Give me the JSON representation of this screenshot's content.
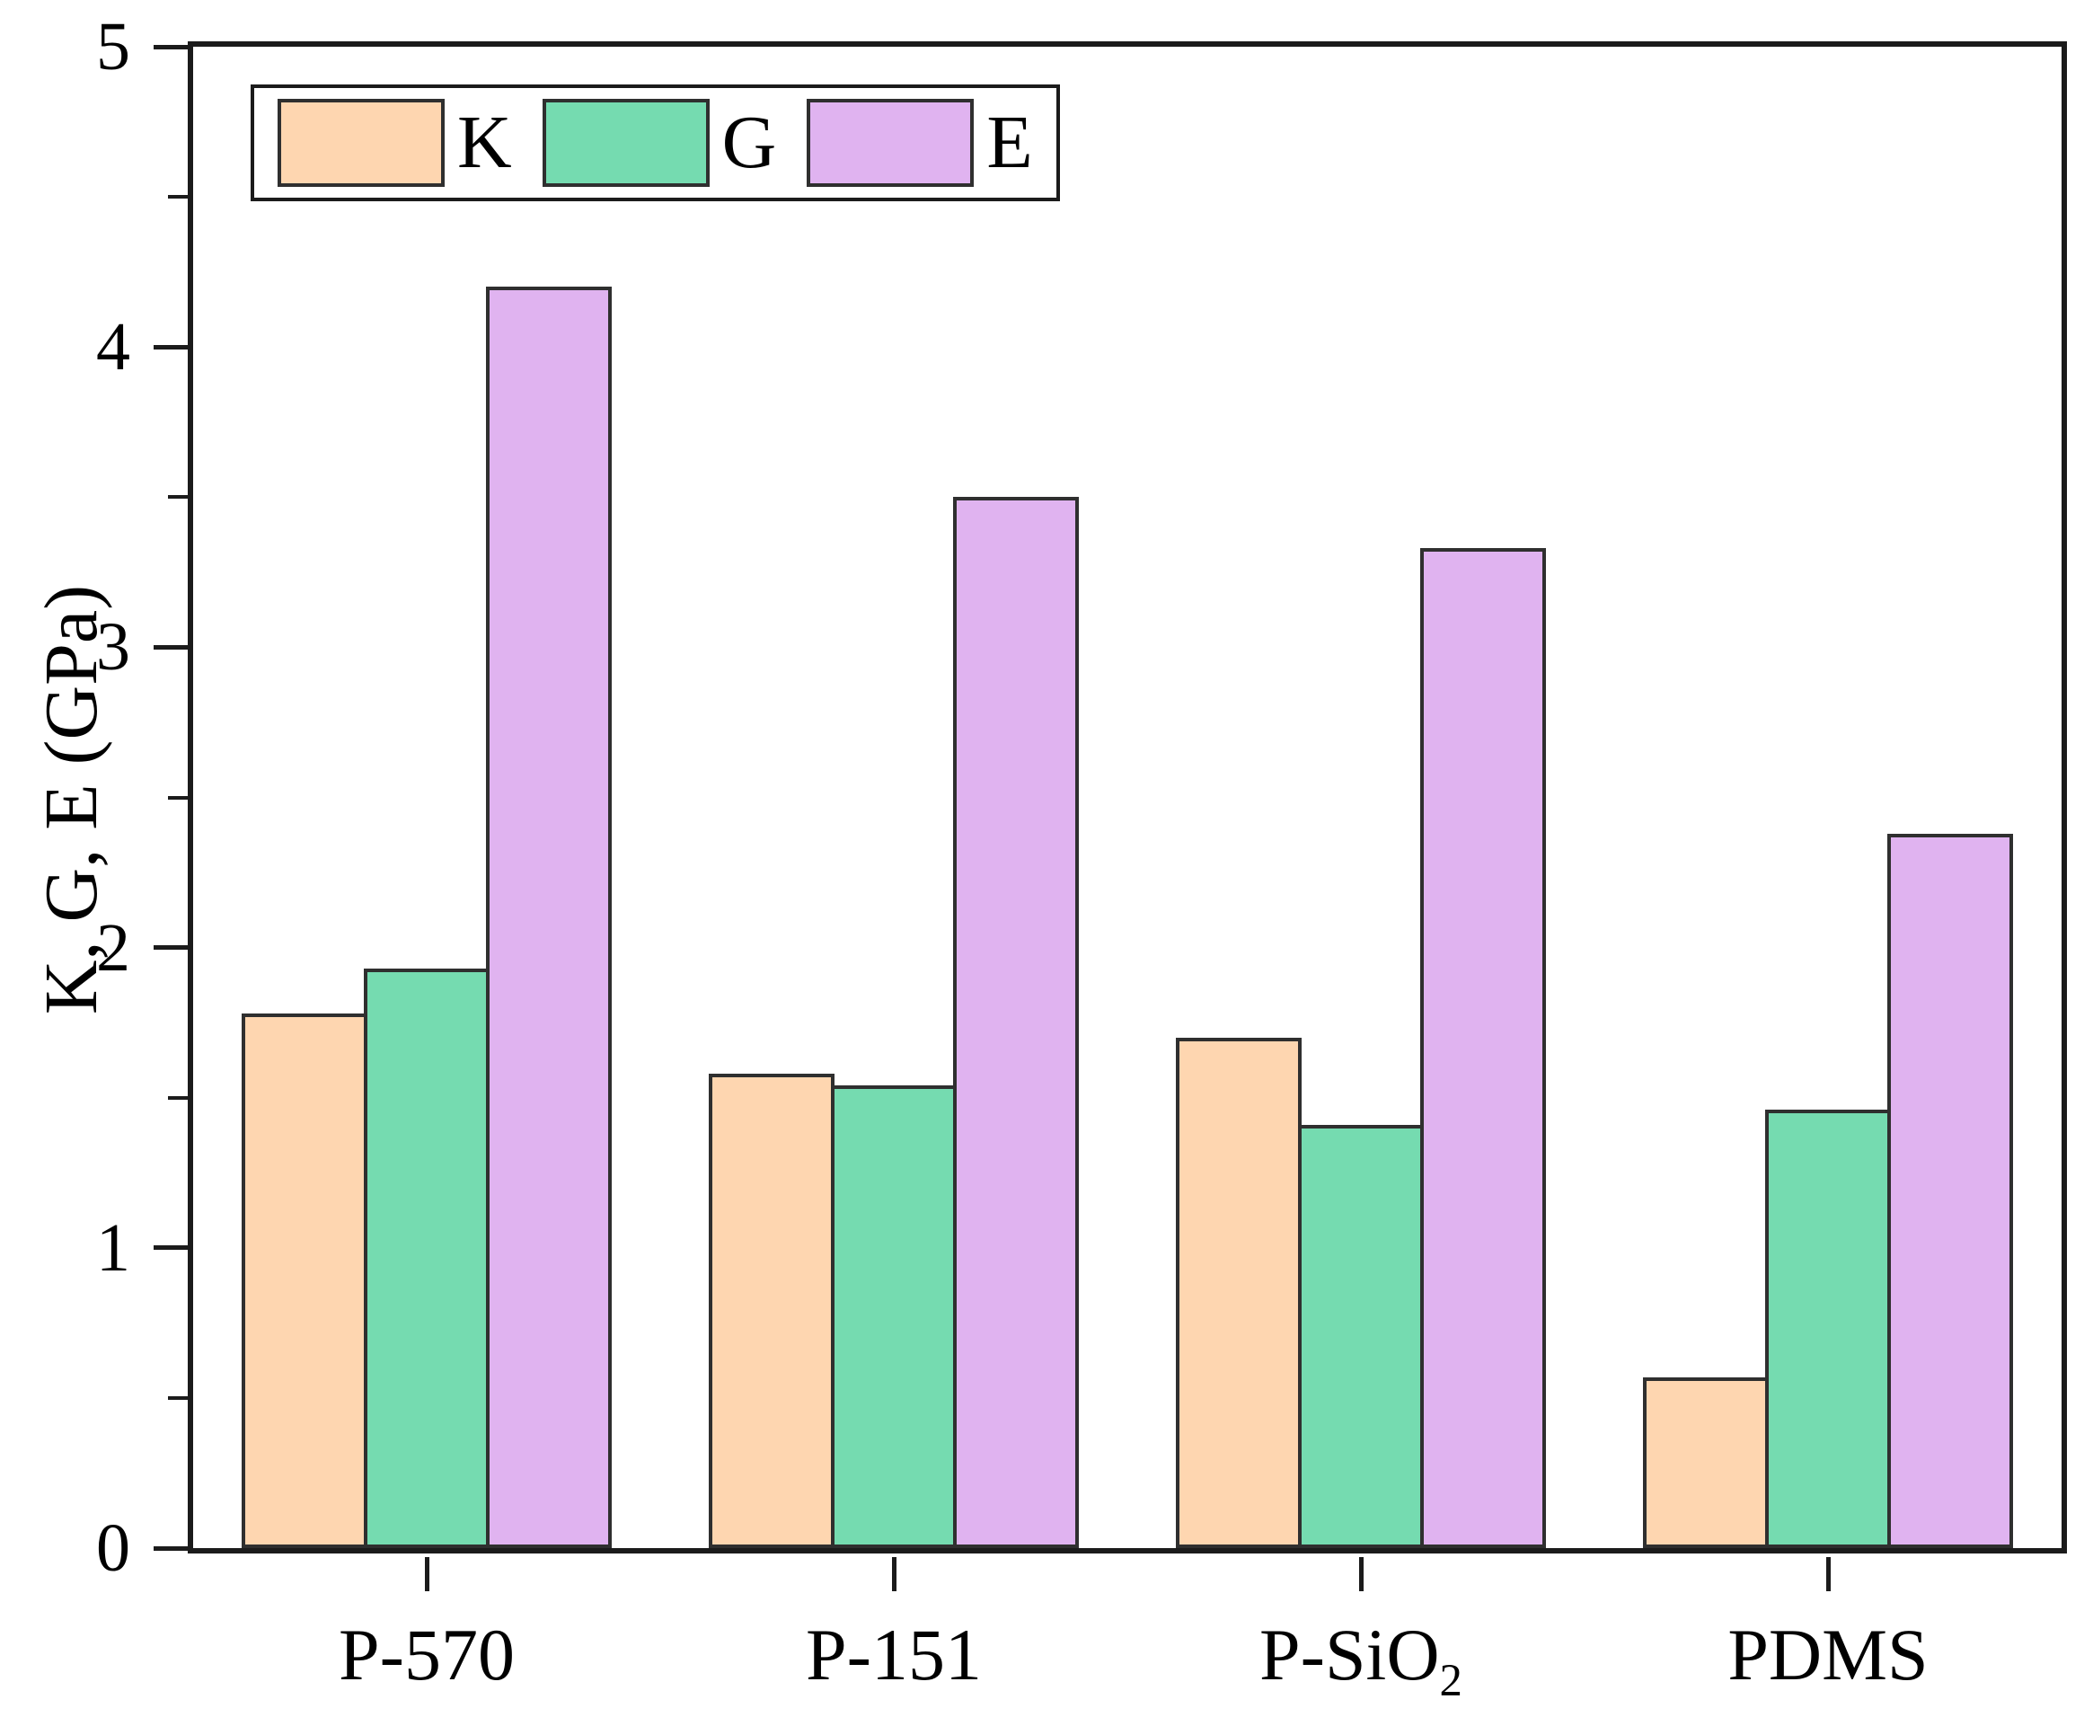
{
  "chart_data": {
    "type": "bar",
    "title": "",
    "xlabel": "",
    "ylabel": "K, G, E (GPa)",
    "ylim": [
      0,
      5
    ],
    "ytick_step": 1,
    "yminor_step": 0.5,
    "ytick_labels": [
      "0",
      "1",
      "2",
      "3",
      "4",
      "5"
    ],
    "grid": false,
    "legend_position": "top-left-inside",
    "frame_color": "#1b1b1b",
    "bar_border_color": "#2f2f2f",
    "categories": [
      {
        "base": "P-570",
        "sub": ""
      },
      {
        "base": "P-151",
        "sub": ""
      },
      {
        "base": "P-SiO",
        "sub": "2"
      },
      {
        "base": "PDMS",
        "sub": ""
      }
    ],
    "series": [
      {
        "name": "K",
        "color": "#FED6B0",
        "values": [
          1.78,
          1.58,
          1.7,
          0.57
        ]
      },
      {
        "name": "G",
        "color": "#75DBB0",
        "values": [
          1.93,
          1.54,
          1.41,
          1.46
        ]
      },
      {
        "name": "E",
        "color": "#E0B3F0",
        "values": [
          4.2,
          3.5,
          3.33,
          2.38
        ]
      }
    ]
  }
}
